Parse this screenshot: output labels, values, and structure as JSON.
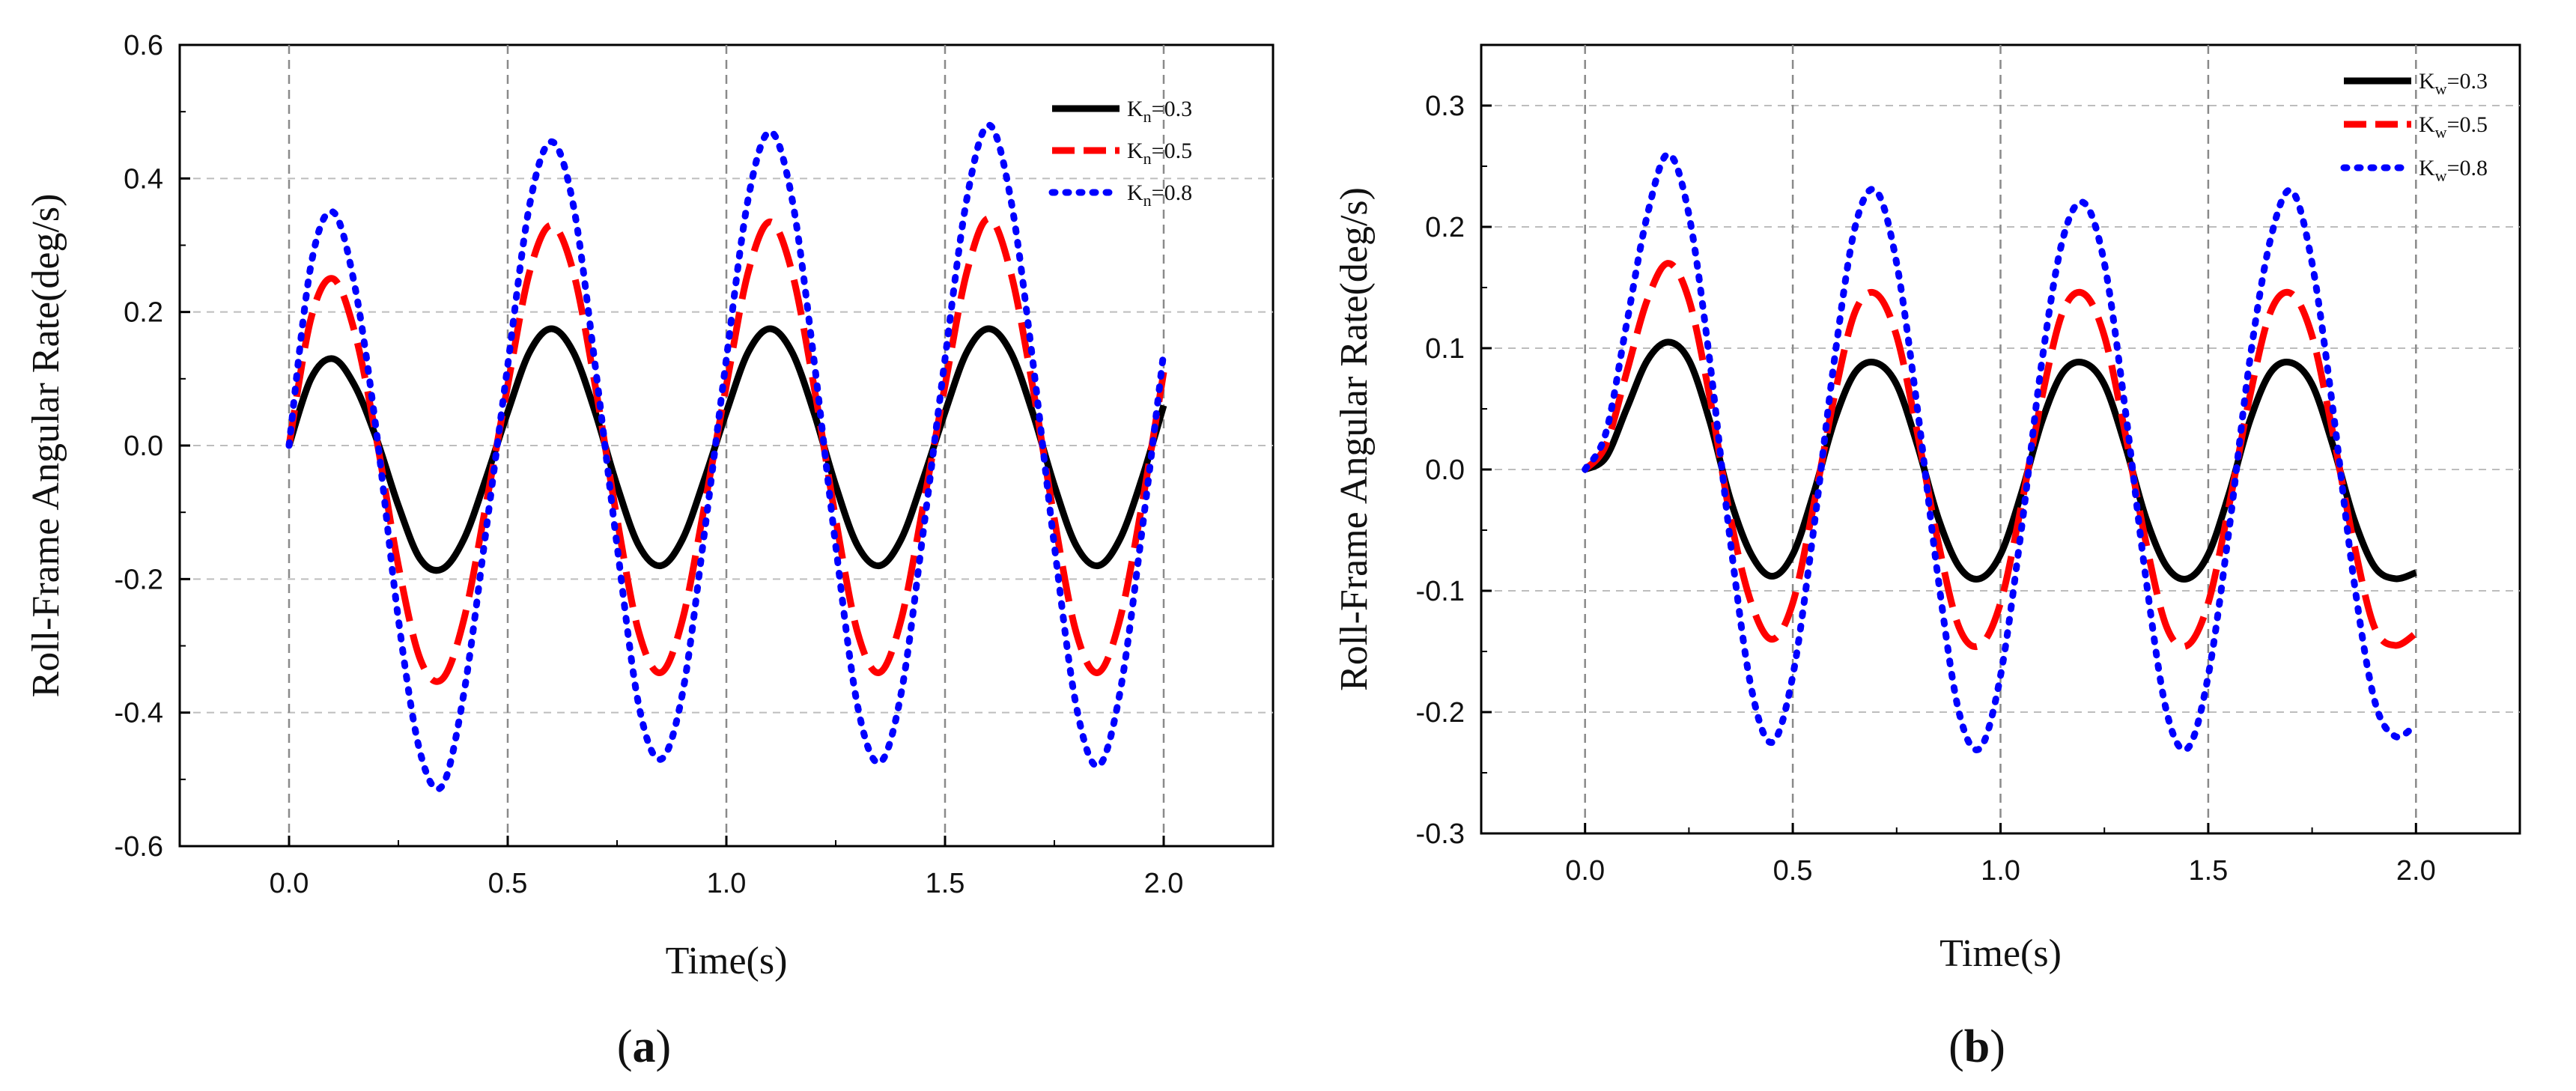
{
  "chart_data": [
    {
      "panel": "a",
      "type": "line",
      "xlabel": "Time(s)",
      "ylabel": "Roll-Frame Angular Rate(deg/s)",
      "xlim": [
        -0.25,
        2.25
      ],
      "ylim": [
        -0.6,
        0.6
      ],
      "xticks": [
        "0.0",
        "0.5",
        "1.0",
        "1.5",
        "2.0"
      ],
      "yticks": [
        "-0.6",
        "-0.4",
        "-0.2",
        "0.0",
        "0.2",
        "0.4",
        "0.6"
      ],
      "grid": true,
      "legend_position": "top-right",
      "series": [
        {
          "name": "Kn=0.3",
          "label_main": "K",
          "label_sub": "n",
          "label_rest": "=0.3",
          "color": "#000000",
          "style": "solid",
          "x": [
            0,
            0.05,
            0.1,
            0.15,
            0.2,
            0.25,
            0.3,
            0.35,
            0.4,
            0.45,
            0.5,
            0.55,
            0.6,
            0.65,
            0.7,
            0.75,
            0.8,
            0.85,
            0.9,
            0.95,
            1.0,
            1.05,
            1.1,
            1.15,
            1.2,
            1.25,
            1.3,
            1.35,
            1.4,
            1.45,
            1.5,
            1.55,
            1.6,
            1.65,
            1.7,
            1.75,
            1.8,
            1.85,
            1.9,
            1.95,
            2.0
          ],
          "y": [
            0,
            0.1,
            0.13,
            0.09,
            0.01,
            -0.09,
            -0.17,
            -0.185,
            -0.14,
            -0.05,
            0.05,
            0.14,
            0.175,
            0.14,
            0.05,
            -0.06,
            -0.15,
            -0.18,
            -0.14,
            -0.05,
            0.05,
            0.14,
            0.175,
            0.14,
            0.05,
            -0.06,
            -0.15,
            -0.18,
            -0.14,
            -0.05,
            0.05,
            0.14,
            0.175,
            0.14,
            0.05,
            -0.06,
            -0.15,
            -0.18,
            -0.14,
            -0.05,
            0.06
          ]
        },
        {
          "name": "Kn=0.5",
          "label_main": "K",
          "label_sub": "n",
          "label_rest": "=0.5",
          "color": "#ff0000",
          "style": "dashed",
          "x": [
            0,
            0.05,
            0.1,
            0.15,
            0.2,
            0.25,
            0.3,
            0.35,
            0.4,
            0.45,
            0.5,
            0.55,
            0.6,
            0.65,
            0.7,
            0.75,
            0.8,
            0.85,
            0.9,
            0.95,
            1.0,
            1.05,
            1.1,
            1.15,
            1.2,
            1.25,
            1.3,
            1.35,
            1.4,
            1.45,
            1.5,
            1.55,
            1.6,
            1.65,
            1.7,
            1.75,
            1.8,
            1.85,
            1.9,
            1.95,
            2.0
          ],
          "y": [
            0,
            0.19,
            0.25,
            0.17,
            0.01,
            -0.18,
            -0.32,
            -0.35,
            -0.26,
            -0.09,
            0.09,
            0.26,
            0.33,
            0.26,
            0.09,
            -0.11,
            -0.28,
            -0.34,
            -0.26,
            -0.09,
            0.09,
            0.26,
            0.335,
            0.26,
            0.09,
            -0.11,
            -0.28,
            -0.34,
            -0.26,
            -0.09,
            0.09,
            0.26,
            0.34,
            0.26,
            0.09,
            -0.11,
            -0.28,
            -0.34,
            -0.26,
            -0.09,
            0.11
          ]
        },
        {
          "name": "Kn=0.8",
          "label_main": "K",
          "label_sub": "n",
          "label_rest": "=0.8",
          "color": "#0000ff",
          "style": "dotted",
          "x": [
            0,
            0.05,
            0.1,
            0.15,
            0.2,
            0.25,
            0.3,
            0.35,
            0.4,
            0.45,
            0.5,
            0.55,
            0.6,
            0.65,
            0.7,
            0.75,
            0.8,
            0.85,
            0.9,
            0.95,
            1.0,
            1.05,
            1.1,
            1.15,
            1.2,
            1.25,
            1.3,
            1.35,
            1.4,
            1.45,
            1.5,
            1.55,
            1.6,
            1.65,
            1.7,
            1.75,
            1.8,
            1.85,
            1.9,
            1.95,
            2.0
          ],
          "y": [
            0,
            0.27,
            0.35,
            0.24,
            0.02,
            -0.26,
            -0.46,
            -0.51,
            -0.37,
            -0.13,
            0.12,
            0.36,
            0.455,
            0.36,
            0.12,
            -0.15,
            -0.39,
            -0.47,
            -0.37,
            -0.13,
            0.13,
            0.37,
            0.47,
            0.37,
            0.13,
            -0.15,
            -0.39,
            -0.475,
            -0.37,
            -0.13,
            0.13,
            0.37,
            0.48,
            0.37,
            0.13,
            -0.15,
            -0.39,
            -0.48,
            -0.37,
            -0.13,
            0.14
          ]
        }
      ]
    },
    {
      "panel": "b",
      "type": "line",
      "xlabel": "Time(s)",
      "ylabel": "Roll-Frame Angular Rate(deg/s)",
      "xlim": [
        -0.25,
        2.25
      ],
      "ylim": [
        -0.3,
        0.35
      ],
      "xticks": [
        "0.0",
        "0.5",
        "1.0",
        "1.5",
        "2.0"
      ],
      "yticks": [
        "-0.3",
        "-0.2",
        "-0.1",
        "0.0",
        "0.1",
        "0.2",
        "0.3"
      ],
      "grid": true,
      "legend_position": "top-right",
      "series": [
        {
          "name": "Kw=0.3",
          "label_main": "K",
          "label_sub": "w",
          "label_rest": "=0.3",
          "color": "#000000",
          "style": "solid",
          "x": [
            0,
            0.05,
            0.1,
            0.15,
            0.2,
            0.25,
            0.3,
            0.35,
            0.4,
            0.45,
            0.5,
            0.55,
            0.6,
            0.65,
            0.7,
            0.75,
            0.8,
            0.85,
            0.9,
            0.95,
            1.0,
            1.05,
            1.1,
            1.15,
            1.2,
            1.25,
            1.3,
            1.35,
            1.4,
            1.45,
            1.5,
            1.55,
            1.6,
            1.65,
            1.7,
            1.75,
            1.8,
            1.85,
            1.9,
            1.95,
            2.0
          ],
          "y": [
            0,
            0.01,
            0.05,
            0.09,
            0.105,
            0.09,
            0.04,
            -0.025,
            -0.07,
            -0.088,
            -0.07,
            -0.02,
            0.04,
            0.08,
            0.088,
            0.07,
            0.02,
            -0.04,
            -0.08,
            -0.09,
            -0.07,
            -0.02,
            0.04,
            0.08,
            0.088,
            0.07,
            0.02,
            -0.04,
            -0.08,
            -0.09,
            -0.07,
            -0.02,
            0.04,
            0.08,
            0.088,
            0.07,
            0.02,
            -0.04,
            -0.08,
            -0.09,
            -0.085
          ]
        },
        {
          "name": "Kw=0.5",
          "label_main": "K",
          "label_sub": "w",
          "label_rest": "=0.5",
          "color": "#ff0000",
          "style": "dashed",
          "x": [
            0,
            0.05,
            0.1,
            0.15,
            0.2,
            0.25,
            0.3,
            0.35,
            0.4,
            0.45,
            0.5,
            0.55,
            0.6,
            0.65,
            0.7,
            0.75,
            0.8,
            0.85,
            0.9,
            0.95,
            1.0,
            1.05,
            1.1,
            1.15,
            1.2,
            1.25,
            1.3,
            1.35,
            1.4,
            1.45,
            1.5,
            1.55,
            1.6,
            1.65,
            1.7,
            1.75,
            1.8,
            1.85,
            1.9,
            1.95,
            2.0
          ],
          "y": [
            0,
            0.02,
            0.08,
            0.14,
            0.17,
            0.14,
            0.06,
            -0.04,
            -0.11,
            -0.14,
            -0.11,
            -0.03,
            0.06,
            0.13,
            0.145,
            0.11,
            0.03,
            -0.06,
            -0.13,
            -0.145,
            -0.11,
            -0.03,
            0.06,
            0.13,
            0.145,
            0.11,
            0.03,
            -0.06,
            -0.13,
            -0.145,
            -0.11,
            -0.03,
            0.06,
            0.13,
            0.145,
            0.11,
            0.03,
            -0.06,
            -0.13,
            -0.145,
            -0.135
          ]
        },
        {
          "name": "Kw=0.8",
          "label_main": "K",
          "label_sub": "w",
          "label_rest": "=0.8",
          "color": "#0000ff",
          "style": "dotted",
          "x": [
            0,
            0.05,
            0.1,
            0.15,
            0.2,
            0.25,
            0.3,
            0.35,
            0.4,
            0.45,
            0.5,
            0.55,
            0.6,
            0.65,
            0.7,
            0.75,
            0.8,
            0.85,
            0.9,
            0.95,
            1.0,
            1.05,
            1.1,
            1.15,
            1.2,
            1.25,
            1.3,
            1.35,
            1.4,
            1.45,
            1.5,
            1.55,
            1.6,
            1.65,
            1.7,
            1.75,
            1.8,
            1.85,
            1.9,
            1.95,
            2.0
          ],
          "y": [
            0,
            0.03,
            0.12,
            0.21,
            0.26,
            0.21,
            0.09,
            -0.06,
            -0.18,
            -0.225,
            -0.17,
            -0.05,
            0.09,
            0.2,
            0.23,
            0.17,
            0.05,
            -0.09,
            -0.2,
            -0.23,
            -0.17,
            -0.05,
            0.09,
            0.19,
            0.22,
            0.17,
            0.05,
            -0.09,
            -0.2,
            -0.23,
            -0.17,
            -0.05,
            0.09,
            0.19,
            0.23,
            0.17,
            0.05,
            -0.09,
            -0.19,
            -0.22,
            -0.21
          ]
        }
      ]
    }
  ],
  "panel_labels": [
    {
      "open": "(",
      "letter": "a",
      "close": ")"
    },
    {
      "open": "(",
      "letter": "b",
      "close": ")"
    }
  ]
}
